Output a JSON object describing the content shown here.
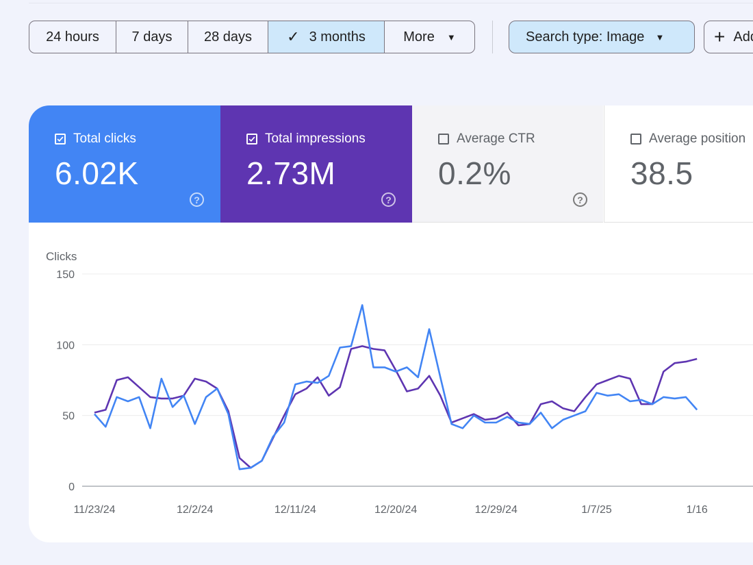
{
  "date_range": {
    "options": [
      {
        "label": "24 hours",
        "selected": false
      },
      {
        "label": "7 days",
        "selected": false
      },
      {
        "label": "28 days",
        "selected": false
      },
      {
        "label": "3 months",
        "selected": true
      },
      {
        "label": "More",
        "selected": false
      }
    ]
  },
  "filters": {
    "search_type_label": "Search type: Image",
    "add_label": "Add"
  },
  "metrics": {
    "clicks": {
      "label": "Total clicks",
      "value": "6.02K",
      "checked": true,
      "color": "#4285f4"
    },
    "impressions": {
      "label": "Total impressions",
      "value": "2.73M",
      "checked": true,
      "color": "#5e35b1"
    },
    "ctr": {
      "label": "Average CTR",
      "value": "0.2%",
      "checked": false
    },
    "position": {
      "label": "Average position",
      "value": "38.5",
      "checked": false
    }
  },
  "chart_data": {
    "type": "line",
    "ylabel": "Clicks",
    "ylim": [
      0,
      150
    ],
    "yticks": [
      0,
      50,
      100,
      150
    ],
    "xtick_labels": [
      "11/23/24",
      "12/2/24",
      "12/11/24",
      "12/20/24",
      "12/29/24",
      "1/7/25",
      "1/16"
    ],
    "x_start": "11/23/24",
    "grid": true,
    "series": [
      {
        "color": "#4285f4",
        "values": [
          51,
          42,
          63,
          60,
          63,
          41,
          76,
          56,
          64,
          44,
          63,
          69,
          51,
          12,
          13,
          18,
          35,
          45,
          72,
          74,
          73,
          78,
          98,
          99,
          128,
          84,
          84,
          81,
          84,
          77,
          111,
          77,
          44,
          41,
          50,
          45,
          45,
          49,
          45,
          44,
          52,
          41,
          47,
          50,
          53,
          66,
          64,
          65,
          60,
          61,
          58,
          63,
          62,
          63,
          54
        ]
      },
      {
        "color": "#5e35b1",
        "values": [
          52,
          54,
          75,
          77,
          70,
          63,
          62,
          62,
          64,
          76,
          74,
          69,
          53,
          20,
          13,
          18,
          34,
          50,
          65,
          69,
          77,
          64,
          70,
          97,
          99,
          97,
          96,
          82,
          67,
          69,
          78,
          64,
          45,
          48,
          51,
          47,
          48,
          52,
          43,
          44,
          58,
          60,
          55,
          53,
          63,
          72,
          75,
          78,
          76,
          58,
          58,
          81,
          87,
          88,
          90
        ]
      }
    ]
  }
}
